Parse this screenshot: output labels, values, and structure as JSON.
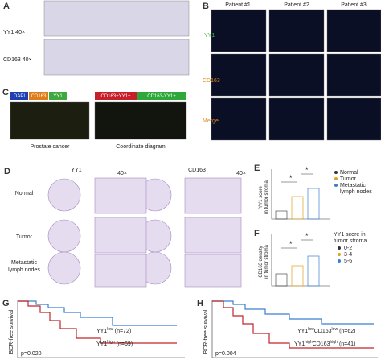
{
  "panels": {
    "a": {
      "label": "A",
      "rows": [
        "YY1 40×",
        "CD163 40×"
      ]
    },
    "b": {
      "label": "B",
      "columns": [
        "Patient #1",
        "Patient #2",
        "Patient #3"
      ],
      "rows": [
        "YY1",
        "CD163",
        "Merge"
      ]
    },
    "c": {
      "label": "C",
      "legend": [
        "DAPI",
        "CD163",
        "YY1",
        "CD163+YY1+",
        "CD163-YY1+"
      ],
      "captions": [
        "Prostate cancer",
        "Coordinate diagram"
      ]
    },
    "d": {
      "label": "D",
      "columns": [
        "YY1",
        "CD163"
      ],
      "zoom": "40×",
      "rows": [
        "Normal",
        "Tumor",
        "Metastatic",
        "lymph nodes"
      ]
    },
    "e": {
      "label": "E",
      "y_label": [
        "YY1 score",
        "in tumor stroma"
      ],
      "legend": [
        "Normal",
        "Tumor",
        "Metastatic",
        "lymph nodes"
      ],
      "sig": "*"
    },
    "f": {
      "label": "F",
      "y_label": [
        "CD163 density",
        "in tumor stroma"
      ],
      "legend_title": [
        "YY1 score in",
        "tumor stroma"
      ],
      "legend": [
        "0-2",
        "3-4",
        "5-6"
      ],
      "sig": "*"
    },
    "g": {
      "label": "G",
      "y_label": "BCR-free survival",
      "low": {
        "base": "YY1",
        "sup": "low",
        "n": "(n=72)"
      },
      "high": {
        "base": "YY1",
        "sup": "high",
        "n": "(n=69)"
      },
      "p": "p=0.020"
    },
    "h": {
      "label": "H",
      "y_label": "BCR-free survival",
      "low": {
        "base": "YY1",
        "sup": "low",
        "mid": "CD163",
        "sup2": "low",
        "n": "(n=62)"
      },
      "high": {
        "base": "YY1",
        "sup": "high",
        "mid": "CD163",
        "sup2": "high",
        "n": "(n=41)"
      },
      "p": "p=0.004"
    }
  }
}
